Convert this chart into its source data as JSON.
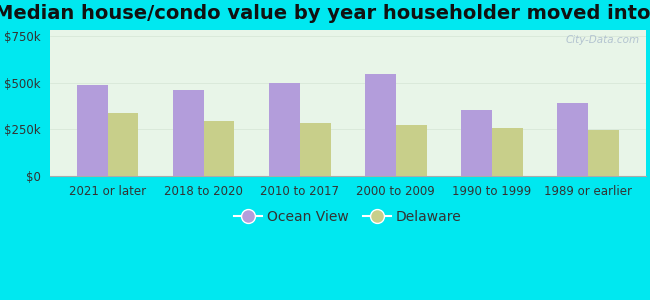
{
  "title": "Median house/condo value by year householder moved into unit",
  "categories": [
    "2021 or later",
    "2018 to 2020",
    "2010 to 2017",
    "2000 to 2009",
    "1990 to 1999",
    "1989 or earlier"
  ],
  "ocean_view": [
    487000,
    462000,
    497000,
    543000,
    352000,
    388000
  ],
  "delaware": [
    335000,
    295000,
    285000,
    270000,
    258000,
    248000
  ],
  "ocean_view_color": "#b39ddb",
  "delaware_color": "#c8cf8a",
  "background_outer": "#00e8f0",
  "background_plot_top": "#e8f5e9",
  "background_plot_bottom": "#dff5ec",
  "yticks": [
    0,
    250000,
    500000,
    750000
  ],
  "ylim": [
    0,
    780000
  ],
  "legend_labels": [
    "Ocean View",
    "Delaware"
  ],
  "watermark": "City-Data.com",
  "title_fontsize": 14,
  "tick_fontsize": 8.5,
  "legend_fontsize": 10
}
